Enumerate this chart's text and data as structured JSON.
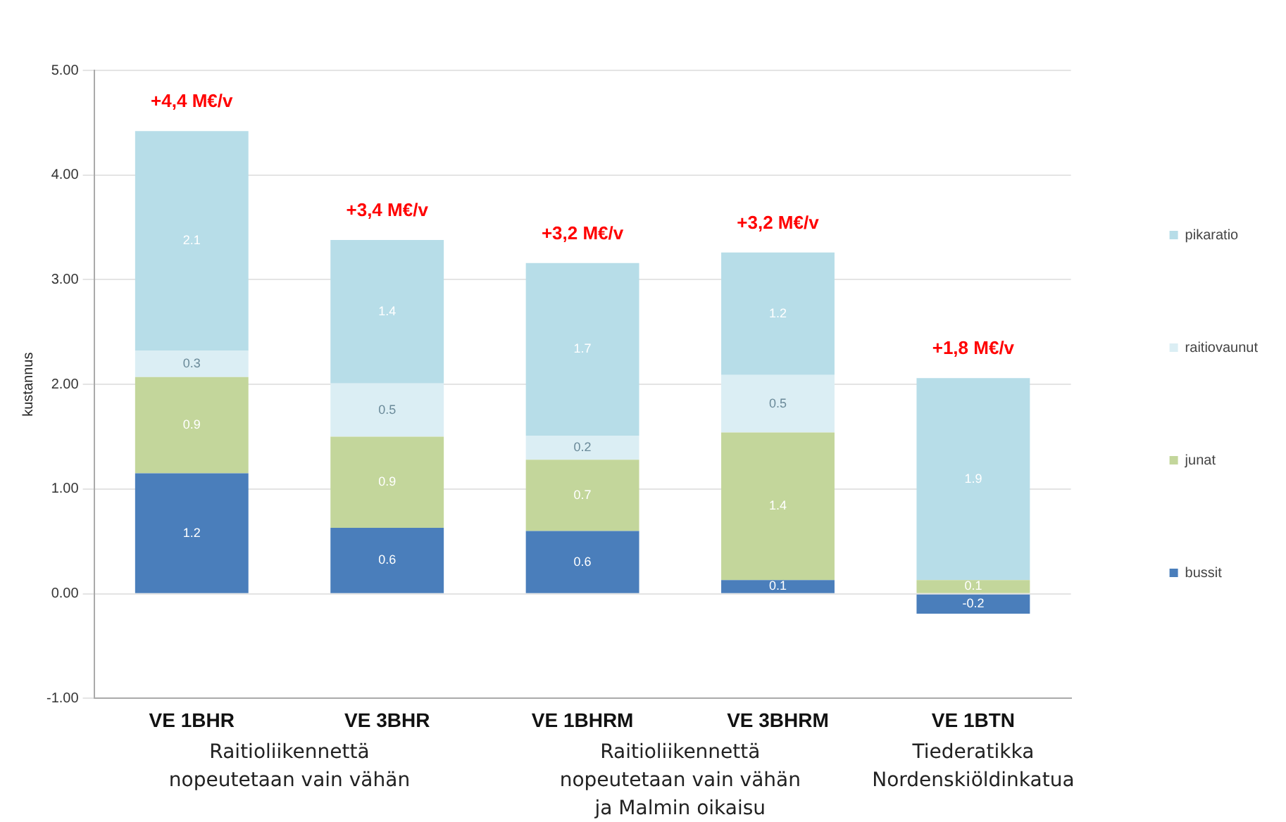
{
  "chart_data": {
    "type": "bar",
    "stacked": true,
    "ylabel": "kustannus",
    "categories": [
      "VE 1BHR",
      "VE 3BHR",
      "VE 1BHRM",
      "VE 3BHRM",
      "VE 1BTN"
    ],
    "series": [
      {
        "name": "bussit",
        "color": "#4a7ebb",
        "values": [
          1.15,
          0.63,
          0.6,
          0.13,
          -0.19
        ],
        "value_labels": [
          "1.2",
          "0.6",
          "0.6",
          "0.1",
          "-0.2"
        ]
      },
      {
        "name": "junat",
        "color": "#c3d69b",
        "values": [
          0.92,
          0.87,
          0.68,
          1.41,
          0.13
        ],
        "value_labels": [
          "0.9",
          "0.9",
          "0.7",
          "1.4",
          "0.1"
        ]
      },
      {
        "name": "raitiovaunut",
        "color": "#dbeef4",
        "values": [
          0.25,
          0.51,
          0.23,
          0.55,
          null
        ],
        "value_labels": [
          "0.3",
          "0.5",
          "0.2",
          "0.5",
          null
        ]
      },
      {
        "name": "pikaratio",
        "color": "#b7dde8",
        "values": [
          2.1,
          1.37,
          1.65,
          1.17,
          1.93
        ],
        "value_labels": [
          "2.1",
          "1.4",
          "1.7",
          "1.2",
          "1.9"
        ]
      }
    ],
    "totals": [
      "+4,4 M€/v",
      "+3,4 M€/v",
      "+3,2 M€/v",
      "+3,2 M€/v",
      "+1,8 M€/v"
    ],
    "ylim": [
      -1,
      5
    ],
    "yticks": [
      {
        "value": -1,
        "label": "-1.00"
      },
      {
        "value": 0,
        "label": "0.00"
      },
      {
        "value": 1,
        "label": "1.00"
      },
      {
        "value": 2,
        "label": "2.00"
      },
      {
        "value": 3,
        "label": "3.00"
      },
      {
        "value": 4,
        "label": "4.00"
      },
      {
        "value": 5,
        "label": "5.00"
      }
    ],
    "annotations": [
      "Raitioliikennettä nopeutetaan vain vähän",
      "Raitioliikennettä nopeutetaan vain vähän ja Malmin oikaisu",
      "Tiederatikka Nordenskiöldinkatua"
    ],
    "grid": "y",
    "legend": "right"
  }
}
